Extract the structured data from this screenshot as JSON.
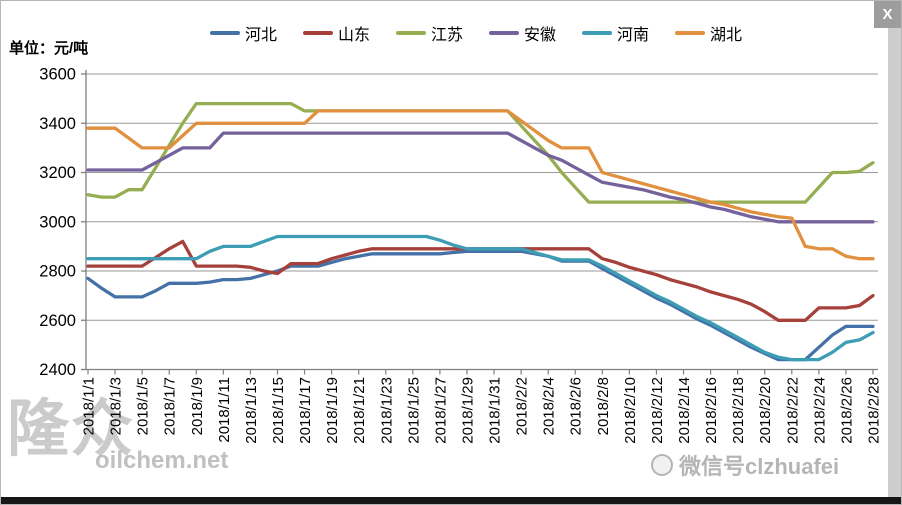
{
  "window": {
    "close_label": "X"
  },
  "unit_label": "单位：元/吨",
  "watermark_left": {
    "logo": "隆众",
    "site": "oilchem.net"
  },
  "watermark_right": {
    "text": "微信号clzhuafei"
  },
  "chart_data": {
    "type": "line",
    "title": "",
    "ylabel": "元/吨",
    "xlabel": "",
    "ylim": [
      2400,
      3600
    ],
    "y_ticks": [
      2400,
      2600,
      2800,
      3000,
      3200,
      3400,
      3600
    ],
    "grid": true,
    "legend_position": "top",
    "x_tick_every": 2,
    "x": [
      "2018/1/1",
      "2018/1/2",
      "2018/1/3",
      "2018/1/4",
      "2018/1/5",
      "2018/1/6",
      "2018/1/7",
      "2018/1/8",
      "2018/1/9",
      "2018/1/10",
      "2018/1/11",
      "2018/1/12",
      "2018/1/13",
      "2018/1/14",
      "2018/1/15",
      "2018/1/16",
      "2018/1/17",
      "2018/1/18",
      "2018/1/19",
      "2018/1/20",
      "2018/1/21",
      "2018/1/22",
      "2018/1/23",
      "2018/1/24",
      "2018/1/25",
      "2018/1/26",
      "2018/1/27",
      "2018/1/28",
      "2018/1/29",
      "2018/1/30",
      "2018/1/31",
      "2018/2/1",
      "2018/2/2",
      "2018/2/3",
      "2018/2/4",
      "2018/2/5",
      "2018/2/6",
      "2018/2/7",
      "2018/2/8",
      "2018/2/9",
      "2018/2/10",
      "2018/2/11",
      "2018/2/12",
      "2018/2/13",
      "2018/2/14",
      "2018/2/15",
      "2018/2/16",
      "2018/2/17",
      "2018/2/18",
      "2018/2/19",
      "2018/2/20",
      "2018/2/21",
      "2018/2/22",
      "2018/2/23",
      "2018/2/24",
      "2018/2/25",
      "2018/2/26",
      "2018/2/27",
      "2018/2/28"
    ],
    "series": [
      {
        "name": "河北",
        "color": "#4472A8",
        "values": [
          2770,
          2730,
          2695,
          2695,
          2695,
          2720,
          2750,
          2750,
          2750,
          2755,
          2765,
          2765,
          2770,
          2785,
          2800,
          2820,
          2820,
          2820,
          2835,
          2850,
          2860,
          2870,
          2870,
          2870,
          2870,
          2870,
          2870,
          2875,
          2880,
          2880,
          2880,
          2880,
          2880,
          2870,
          2860,
          2840,
          2840,
          2840,
          2810,
          2780,
          2750,
          2720,
          2690,
          2665,
          2635,
          2605,
          2580,
          2550,
          2520,
          2490,
          2465,
          2440,
          2440,
          2440,
          2490,
          2540,
          2575,
          2575,
          2575
        ]
      },
      {
        "name": "山东",
        "color": "#A6403A",
        "values": [
          2820,
          2820,
          2820,
          2820,
          2820,
          2855,
          2890,
          2920,
          2820,
          2820,
          2820,
          2820,
          2815,
          2800,
          2790,
          2830,
          2830,
          2830,
          2850,
          2865,
          2880,
          2890,
          2890,
          2890,
          2890,
          2890,
          2890,
          2890,
          2890,
          2890,
          2890,
          2890,
          2890,
          2890,
          2890,
          2890,
          2890,
          2890,
          2850,
          2835,
          2815,
          2800,
          2785,
          2765,
          2750,
          2735,
          2715,
          2700,
          2685,
          2665,
          2635,
          2600,
          2600,
          2600,
          2650,
          2650,
          2650,
          2660,
          2700
        ]
      },
      {
        "name": "江苏",
        "color": "#96AE52",
        "values": [
          3110,
          3100,
          3100,
          3130,
          3130,
          3220,
          3310,
          3400,
          3480,
          3480,
          3480,
          3480,
          3480,
          3480,
          3480,
          3480,
          3450,
          3450,
          3450,
          3450,
          3450,
          3450,
          3450,
          3450,
          3450,
          3450,
          3450,
          3450,
          3450,
          3450,
          3450,
          3450,
          3390,
          3330,
          3270,
          3200,
          3140,
          3080,
          3080,
          3080,
          3080,
          3080,
          3080,
          3080,
          3080,
          3080,
          3080,
          3080,
          3080,
          3080,
          3080,
          3080,
          3080,
          3080,
          3140,
          3200,
          3200,
          3205,
          3240
        ]
      },
      {
        "name": "安徽",
        "color": "#75619B",
        "values": [
          3210,
          3210,
          3210,
          3210,
          3210,
          3240,
          3270,
          3300,
          3300,
          3300,
          3360,
          3360,
          3360,
          3360,
          3360,
          3360,
          3360,
          3360,
          3360,
          3360,
          3360,
          3360,
          3360,
          3360,
          3360,
          3360,
          3360,
          3360,
          3360,
          3360,
          3360,
          3360,
          3330,
          3300,
          3270,
          3250,
          3220,
          3190,
          3160,
          3150,
          3140,
          3130,
          3115,
          3100,
          3090,
          3075,
          3060,
          3050,
          3035,
          3020,
          3010,
          3000,
          3000,
          3000,
          3000,
          3000,
          3000,
          3000,
          3000
        ]
      },
      {
        "name": "河南",
        "color": "#3C9DB5",
        "values": [
          2850,
          2850,
          2850,
          2850,
          2850,
          2850,
          2850,
          2850,
          2850,
          2880,
          2900,
          2900,
          2900,
          2920,
          2940,
          2940,
          2940,
          2940,
          2940,
          2940,
          2940,
          2940,
          2940,
          2940,
          2940,
          2940,
          2925,
          2905,
          2890,
          2890,
          2890,
          2890,
          2890,
          2875,
          2860,
          2845,
          2845,
          2845,
          2820,
          2790,
          2760,
          2730,
          2700,
          2675,
          2645,
          2615,
          2590,
          2560,
          2530,
          2500,
          2470,
          2450,
          2440,
          2440,
          2440,
          2470,
          2510,
          2520,
          2550
        ]
      },
      {
        "name": "湖北",
        "color": "#E0903E",
        "values": [
          3380,
          3380,
          3380,
          3340,
          3300,
          3300,
          3300,
          3350,
          3400,
          3400,
          3400,
          3400,
          3400,
          3400,
          3400,
          3400,
          3400,
          3450,
          3450,
          3450,
          3450,
          3450,
          3450,
          3450,
          3450,
          3450,
          3450,
          3450,
          3450,
          3450,
          3450,
          3450,
          3410,
          3370,
          3330,
          3300,
          3300,
          3300,
          3200,
          3185,
          3170,
          3155,
          3140,
          3125,
          3110,
          3095,
          3080,
          3070,
          3055,
          3040,
          3030,
          3020,
          3015,
          2900,
          2890,
          2890,
          2860,
          2850,
          2850
        ]
      }
    ]
  }
}
